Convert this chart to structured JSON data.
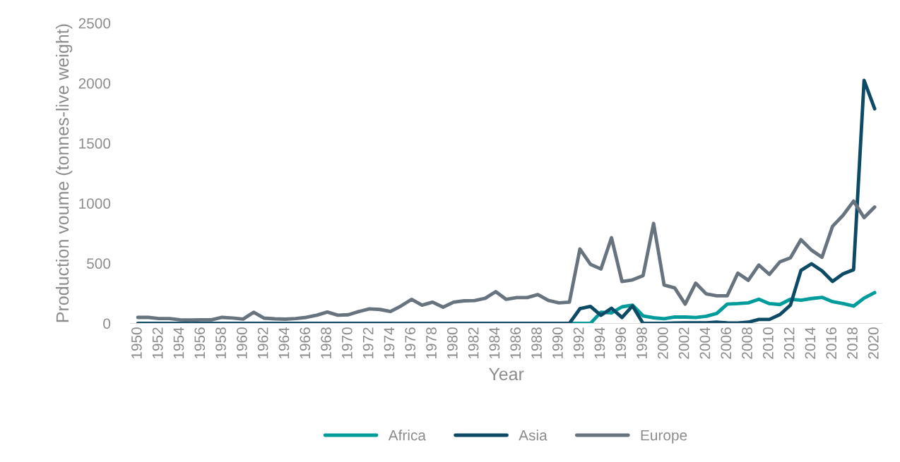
{
  "chart_data": {
    "type": "line",
    "xlabel": "Year",
    "ylabel": "Production voume (tonnes-live weight)",
    "x": [
      1950,
      1951,
      1952,
      1953,
      1954,
      1955,
      1956,
      1957,
      1958,
      1959,
      1960,
      1961,
      1962,
      1963,
      1964,
      1965,
      1966,
      1967,
      1968,
      1969,
      1970,
      1971,
      1972,
      1973,
      1974,
      1975,
      1976,
      1977,
      1978,
      1979,
      1980,
      1981,
      1982,
      1983,
      1984,
      1985,
      1986,
      1987,
      1988,
      1989,
      1990,
      1991,
      1992,
      1993,
      1994,
      1995,
      1996,
      1997,
      1998,
      1999,
      2000,
      2001,
      2002,
      2003,
      2004,
      2005,
      2006,
      2007,
      2008,
      2009,
      2010,
      2011,
      2012,
      2013,
      2014,
      2015,
      2016,
      2017,
      2018,
      2019,
      2020
    ],
    "series": [
      {
        "name": "Africa",
        "color": "#009b9b",
        "values": [
          null,
          null,
          null,
          null,
          null,
          null,
          null,
          null,
          null,
          null,
          null,
          null,
          null,
          null,
          null,
          null,
          null,
          null,
          null,
          null,
          null,
          null,
          null,
          null,
          null,
          null,
          null,
          null,
          null,
          null,
          null,
          null,
          null,
          null,
          null,
          null,
          null,
          null,
          null,
          null,
          null,
          0,
          0,
          0,
          93,
          87,
          138,
          152,
          63,
          47,
          39,
          53,
          53,
          49,
          59,
          83,
          161,
          165,
          171,
          201,
          165,
          157,
          201,
          193,
          207,
          217,
          181,
          165,
          144,
          211,
          256
        ]
      },
      {
        "name": "Asia",
        "color": "#0c4a66",
        "values": [
          0,
          0,
          0,
          0,
          0,
          0,
          0,
          0,
          0,
          0,
          0,
          0,
          0,
          0,
          0,
          0,
          0,
          0,
          0,
          0,
          0,
          0,
          0,
          0,
          0,
          0,
          0,
          0,
          0,
          0,
          0,
          0,
          0,
          0,
          0,
          0,
          0,
          0,
          0,
          0,
          0,
          0,
          122,
          142,
          67,
          126,
          49,
          146,
          0,
          0,
          0,
          3,
          5,
          5,
          5,
          10,
          5,
          3,
          10,
          33,
          33,
          73,
          152,
          441,
          496,
          437,
          349,
          412,
          447,
          2023,
          1787
        ]
      },
      {
        "name": "Europe",
        "color": "#67737f",
        "values": [
          50,
          50,
          40,
          40,
          30,
          28,
          30,
          30,
          50,
          45,
          36,
          93,
          44,
          38,
          35,
          40,
          50,
          68,
          95,
          68,
          72,
          99,
          121,
          116,
          99,
          145,
          200,
          152,
          177,
          135,
          177,
          188,
          190,
          209,
          264,
          200,
          215,
          215,
          240,
          191,
          171,
          177,
          619,
          492,
          453,
          713,
          349,
          362,
          398,
          832,
          319,
          296,
          161,
          335,
          246,
          230,
          230,
          418,
          359,
          486,
          408,
          512,
          546,
          697,
          610,
          551,
          808,
          900,
          1018,
          881,
          969
        ]
      }
    ],
    "xlim": [
      1949.3,
      2020.7
    ],
    "xticks": [
      1950,
      1952,
      1954,
      1956,
      1958,
      1960,
      1962,
      1964,
      1966,
      1968,
      1970,
      1972,
      1974,
      1976,
      1978,
      1980,
      1982,
      1984,
      1986,
      1988,
      1990,
      1992,
      1994,
      1996,
      1998,
      2000,
      2002,
      2004,
      2006,
      2008,
      2010,
      2012,
      2014,
      2016,
      2018,
      2020
    ],
    "ylim": [
      0,
      2500
    ],
    "yticks": [
      0,
      500,
      1000,
      1500,
      2000,
      2500
    ],
    "grid": false,
    "legend": "bottom",
    "marker": "none",
    "line_style": "solid"
  }
}
